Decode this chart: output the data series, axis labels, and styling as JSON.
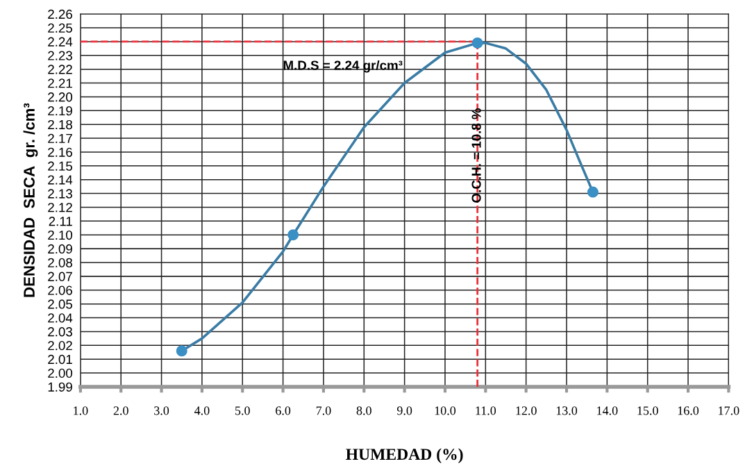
{
  "chart_data": {
    "type": "scatter",
    "xlabel": "HUMEDAD (%)",
    "ylabel": "DENSIDAD  SECA  gr. /cm³",
    "series": [
      {
        "type": "line",
        "color": "#3a7ca5",
        "marker": "none",
        "x": [
          3.5,
          4.0,
          5.0,
          6.0,
          6.25,
          7.0,
          8.0,
          9.0,
          10.0,
          10.8,
          11.0,
          11.5,
          12.0,
          12.5,
          13.0,
          13.3,
          13.65
        ],
        "values": [
          2.016,
          2.025,
          2.051,
          2.088,
          2.1,
          2.135,
          2.178,
          2.21,
          2.232,
          2.239,
          2.239,
          2.235,
          2.224,
          2.205,
          2.176,
          2.155,
          2.131
        ]
      },
      {
        "color": "#3a8fc4",
        "marker": "circle",
        "x": [
          3.5,
          6.25,
          10.8,
          13.65
        ],
        "values": [
          2.016,
          2.1,
          2.239,
          2.131
        ]
      }
    ],
    "ref_lines": [
      {
        "axis": "y",
        "value": 2.24,
        "label": "M.D.S = 2.24 gr/cm³",
        "color": "#e8303a",
        "line_style": "dashed"
      },
      {
        "axis": "x",
        "value": 10.8,
        "label": "O.C.H. = 10.8 %",
        "color": "#e8303a",
        "line_style": "dashed"
      }
    ],
    "xlim": [
      1.0,
      17.0
    ],
    "xticks": [
      {
        "value": 1,
        "label": "1.0"
      },
      {
        "value": 2,
        "label": "2.0"
      },
      {
        "value": 3,
        "label": "3.0"
      },
      {
        "value": 4,
        "label": "4.0"
      },
      {
        "value": 5,
        "label": "5.0"
      },
      {
        "value": 6,
        "label": "6.0"
      },
      {
        "value": 7,
        "label": "7.0"
      },
      {
        "value": 8,
        "label": "8.0"
      },
      {
        "value": 9,
        "label": "9.0"
      },
      {
        "value": 10,
        "label": "10.0"
      },
      {
        "value": 11,
        "label": "11.0"
      },
      {
        "value": 12,
        "label": "12.0"
      },
      {
        "value": 13,
        "label": "13.0"
      },
      {
        "value": 14,
        "label": "14.0"
      },
      {
        "value": 15,
        "label": "15.0"
      },
      {
        "value": 16,
        "label": "16.0"
      },
      {
        "value": 17,
        "label": "17.0"
      }
    ],
    "ylim": [
      1.99,
      2.26
    ],
    "yticks": [
      1.99,
      {
        "value": 2.0,
        "label": "2.00"
      },
      2.01,
      2.02,
      2.03,
      2.04,
      2.05,
      2.06,
      2.07,
      2.08,
      2.09,
      {
        "value": 2.1,
        "label": "2.10"
      },
      2.11,
      2.12,
      2.13,
      2.14,
      2.15,
      2.16,
      2.17,
      2.18,
      2.19,
      {
        "value": 2.2,
        "label": "2.20"
      },
      2.21,
      2.22,
      2.23,
      2.24,
      2.25,
      2.26
    ],
    "grid": true
  }
}
